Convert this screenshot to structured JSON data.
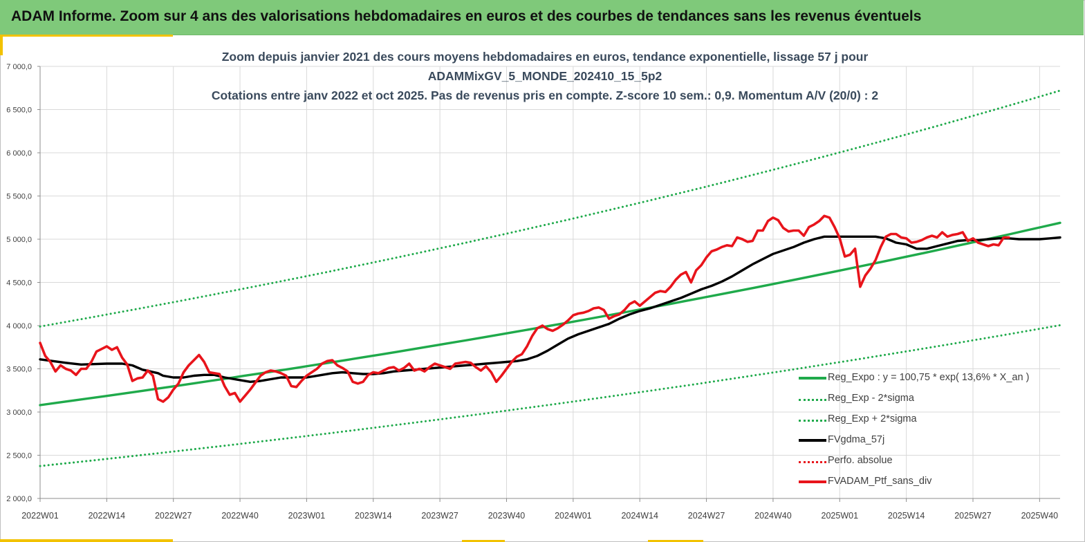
{
  "header": {
    "title": "ADAM Informe. Zoom sur 4 ans des valorisations hebdomadaires en euros et des courbes de tendances sans les revenus éventuels"
  },
  "colors": {
    "header_bg": "#7fc97a",
    "accent": "#f2c200",
    "reg_expo": "#1faa4b",
    "gdma": "#000000",
    "ptf": "#e8141b"
  },
  "chart_data": {
    "type": "line",
    "title_lines": [
      "Zoom depuis janvier 2021 des cours moyens hebdomadaires en euros, tendance exponentielle, lissage 57 j pour",
      "ADAMMixGV_5_MONDE_202410_15_5p2",
      "Cotations entre janv 2022 et oct 2025. Pas de revenus pris en compte. Z-score 10 sem.: 0,9. Momentum A/V (20/0) : 2"
    ],
    "x_unit": "week index from 2022W01",
    "x_range": [
      0,
      199
    ],
    "ylim": [
      2000,
      7000
    ],
    "y_ticks": [
      "2 000,0",
      "2 500,0",
      "3 000,0",
      "3 500,0",
      "4 000,0",
      "4 500,0",
      "5 000,0",
      "5 500,0",
      "6 000,0",
      "6 500,0",
      "7 000,0"
    ],
    "y_tick_values": [
      2000,
      2500,
      3000,
      3500,
      4000,
      4500,
      5000,
      5500,
      6000,
      6500,
      7000
    ],
    "x_ticks": [
      "2022W01",
      "2022W14",
      "2022W27",
      "2022W40",
      "2023W01",
      "2023W14",
      "2023W27",
      "2023W40",
      "2024W01",
      "2024W14",
      "2024W27",
      "2024W40",
      "2025W01",
      "2025W14",
      "2025W27",
      "2025W40"
    ],
    "x_tick_positions": [
      0,
      13,
      26,
      39,
      52,
      65,
      78,
      91,
      104,
      117,
      130,
      143,
      156,
      169,
      182,
      195
    ],
    "grid": true,
    "legend_position": "bottom-right",
    "series": [
      {
        "name": "Reg_Expo : y = 100,75 * exp( 13,6% *  X_an )",
        "style": "solid",
        "color": "#1faa4b",
        "x": [
          0,
          199
        ],
        "exp_fit": {
          "start": 3080,
          "end": 5190
        }
      },
      {
        "name": "Reg_Exp - 2*sigma",
        "style": "dotted",
        "color": "#1faa4b",
        "x": [
          0,
          199
        ],
        "exp_fit": {
          "start": 2375,
          "end": 4005
        }
      },
      {
        "name": "Reg_Exp + 2*sigma",
        "style": "dotted",
        "color": "#1faa4b",
        "x": [
          0,
          199
        ],
        "exp_fit": {
          "start": 3990,
          "end": 6720
        }
      },
      {
        "name": "FVgdma_57j",
        "style": "solid",
        "color": "#000000",
        "points": [
          [
            0,
            3610
          ],
          [
            5,
            3570
          ],
          [
            8,
            3550
          ],
          [
            13,
            3560
          ],
          [
            16,
            3560
          ],
          [
            18,
            3540
          ],
          [
            20,
            3490
          ],
          [
            23,
            3450
          ],
          [
            24,
            3420
          ],
          [
            26,
            3400
          ],
          [
            28,
            3400
          ],
          [
            30,
            3420
          ],
          [
            32,
            3430
          ],
          [
            34,
            3430
          ],
          [
            36,
            3400
          ],
          [
            39,
            3370
          ],
          [
            41,
            3350
          ],
          [
            43,
            3360
          ],
          [
            45,
            3380
          ],
          [
            47,
            3400
          ],
          [
            49,
            3400
          ],
          [
            52,
            3400
          ],
          [
            55,
            3430
          ],
          [
            57,
            3450
          ],
          [
            59,
            3460
          ],
          [
            61,
            3450
          ],
          [
            63,
            3440
          ],
          [
            65,
            3440
          ],
          [
            67,
            3450
          ],
          [
            69,
            3470
          ],
          [
            71,
            3480
          ],
          [
            73,
            3490
          ],
          [
            75,
            3500
          ],
          [
            77,
            3510
          ],
          [
            79,
            3520
          ],
          [
            81,
            3530
          ],
          [
            83,
            3540
          ],
          [
            85,
            3550
          ],
          [
            87,
            3560
          ],
          [
            89,
            3570
          ],
          [
            91,
            3580
          ],
          [
            93,
            3590
          ],
          [
            95,
            3610
          ],
          [
            97,
            3650
          ],
          [
            99,
            3710
          ],
          [
            101,
            3780
          ],
          [
            103,
            3850
          ],
          [
            105,
            3900
          ],
          [
            107,
            3940
          ],
          [
            109,
            3980
          ],
          [
            111,
            4020
          ],
          [
            113,
            4080
          ],
          [
            115,
            4130
          ],
          [
            117,
            4170
          ],
          [
            119,
            4200
          ],
          [
            121,
            4240
          ],
          [
            123,
            4280
          ],
          [
            125,
            4320
          ],
          [
            127,
            4370
          ],
          [
            129,
            4420
          ],
          [
            131,
            4460
          ],
          [
            133,
            4510
          ],
          [
            135,
            4570
          ],
          [
            137,
            4640
          ],
          [
            139,
            4710
          ],
          [
            141,
            4770
          ],
          [
            143,
            4830
          ],
          [
            145,
            4870
          ],
          [
            147,
            4910
          ],
          [
            149,
            4960
          ],
          [
            151,
            5000
          ],
          [
            153,
            5030
          ],
          [
            155,
            5030
          ],
          [
            157,
            5030
          ],
          [
            159,
            5030
          ],
          [
            161,
            5030
          ],
          [
            163,
            5030
          ],
          [
            165,
            5010
          ],
          [
            167,
            4960
          ],
          [
            169,
            4940
          ],
          [
            171,
            4890
          ],
          [
            173,
            4890
          ],
          [
            175,
            4920
          ],
          [
            177,
            4950
          ],
          [
            179,
            4980
          ],
          [
            181,
            4990
          ],
          [
            183,
            4990
          ],
          [
            185,
            5000
          ],
          [
            187,
            5010
          ],
          [
            189,
            5010
          ],
          [
            191,
            5000
          ],
          [
            193,
            5000
          ],
          [
            195,
            5000
          ],
          [
            197,
            5010
          ],
          [
            199,
            5020
          ]
        ]
      },
      {
        "name": "Perfo. absolue",
        "style": "dotted",
        "color": "#e8141b",
        "points": []
      },
      {
        "name": "FVADAM_Ptf_sans_div",
        "style": "solid",
        "color": "#e8141b",
        "points": [
          [
            0,
            3800
          ],
          [
            1,
            3650
          ],
          [
            2,
            3580
          ],
          [
            3,
            3470
          ],
          [
            4,
            3540
          ],
          [
            5,
            3500
          ],
          [
            6,
            3480
          ],
          [
            7,
            3430
          ],
          [
            8,
            3500
          ],
          [
            9,
            3500
          ],
          [
            10,
            3580
          ],
          [
            11,
            3700
          ],
          [
            12,
            3730
          ],
          [
            13,
            3760
          ],
          [
            14,
            3720
          ],
          [
            15,
            3750
          ],
          [
            16,
            3630
          ],
          [
            17,
            3550
          ],
          [
            18,
            3360
          ],
          [
            19,
            3390
          ],
          [
            20,
            3400
          ],
          [
            21,
            3480
          ],
          [
            22,
            3420
          ],
          [
            23,
            3150
          ],
          [
            24,
            3120
          ],
          [
            25,
            3170
          ],
          [
            26,
            3260
          ],
          [
            27,
            3330
          ],
          [
            28,
            3460
          ],
          [
            29,
            3540
          ],
          [
            30,
            3600
          ],
          [
            31,
            3660
          ],
          [
            32,
            3580
          ],
          [
            33,
            3460
          ],
          [
            34,
            3450
          ],
          [
            35,
            3440
          ],
          [
            36,
            3300
          ],
          [
            37,
            3200
          ],
          [
            38,
            3220
          ],
          [
            39,
            3120
          ],
          [
            40,
            3190
          ],
          [
            41,
            3260
          ],
          [
            42,
            3340
          ],
          [
            43,
            3420
          ],
          [
            44,
            3460
          ],
          [
            45,
            3480
          ],
          [
            46,
            3470
          ],
          [
            47,
            3450
          ],
          [
            48,
            3420
          ],
          [
            49,
            3300
          ],
          [
            50,
            3290
          ],
          [
            51,
            3360
          ],
          [
            52,
            3420
          ],
          [
            53,
            3460
          ],
          [
            54,
            3500
          ],
          [
            55,
            3560
          ],
          [
            56,
            3590
          ],
          [
            57,
            3600
          ],
          [
            58,
            3540
          ],
          [
            59,
            3510
          ],
          [
            60,
            3470
          ],
          [
            61,
            3350
          ],
          [
            62,
            3330
          ],
          [
            63,
            3350
          ],
          [
            64,
            3430
          ],
          [
            65,
            3460
          ],
          [
            66,
            3450
          ],
          [
            67,
            3480
          ],
          [
            68,
            3510
          ],
          [
            69,
            3520
          ],
          [
            70,
            3480
          ],
          [
            71,
            3510
          ],
          [
            72,
            3560
          ],
          [
            73,
            3480
          ],
          [
            74,
            3500
          ],
          [
            75,
            3470
          ],
          [
            76,
            3520
          ],
          [
            77,
            3560
          ],
          [
            78,
            3540
          ],
          [
            79,
            3520
          ],
          [
            80,
            3500
          ],
          [
            81,
            3560
          ],
          [
            82,
            3570
          ],
          [
            83,
            3580
          ],
          [
            84,
            3570
          ],
          [
            85,
            3520
          ],
          [
            86,
            3480
          ],
          [
            87,
            3530
          ],
          [
            88,
            3460
          ],
          [
            89,
            3350
          ],
          [
            90,
            3420
          ],
          [
            91,
            3500
          ],
          [
            92,
            3580
          ],
          [
            93,
            3640
          ],
          [
            94,
            3670
          ],
          [
            95,
            3760
          ],
          [
            96,
            3880
          ],
          [
            97,
            3970
          ],
          [
            98,
            4000
          ],
          [
            99,
            3960
          ],
          [
            100,
            3940
          ],
          [
            101,
            3970
          ],
          [
            102,
            4010
          ],
          [
            103,
            4060
          ],
          [
            104,
            4120
          ],
          [
            105,
            4140
          ],
          [
            106,
            4150
          ],
          [
            107,
            4170
          ],
          [
            108,
            4200
          ],
          [
            109,
            4210
          ],
          [
            110,
            4180
          ],
          [
            111,
            4080
          ],
          [
            112,
            4110
          ],
          [
            113,
            4130
          ],
          [
            114,
            4180
          ],
          [
            115,
            4250
          ],
          [
            116,
            4280
          ],
          [
            117,
            4230
          ],
          [
            118,
            4280
          ],
          [
            119,
            4330
          ],
          [
            120,
            4380
          ],
          [
            121,
            4400
          ],
          [
            122,
            4390
          ],
          [
            123,
            4450
          ],
          [
            124,
            4530
          ],
          [
            125,
            4590
          ],
          [
            126,
            4620
          ],
          [
            127,
            4500
          ],
          [
            128,
            4640
          ],
          [
            129,
            4700
          ],
          [
            130,
            4790
          ],
          [
            131,
            4860
          ],
          [
            132,
            4880
          ],
          [
            133,
            4910
          ],
          [
            134,
            4930
          ],
          [
            135,
            4920
          ],
          [
            136,
            5020
          ],
          [
            137,
            5000
          ],
          [
            138,
            4970
          ],
          [
            139,
            4980
          ],
          [
            140,
            5100
          ],
          [
            141,
            5100
          ],
          [
            142,
            5210
          ],
          [
            143,
            5250
          ],
          [
            144,
            5220
          ],
          [
            145,
            5130
          ],
          [
            146,
            5090
          ],
          [
            147,
            5100
          ],
          [
            148,
            5100
          ],
          [
            149,
            5040
          ],
          [
            150,
            5140
          ],
          [
            151,
            5170
          ],
          [
            152,
            5210
          ],
          [
            153,
            5270
          ],
          [
            154,
            5250
          ],
          [
            155,
            5140
          ],
          [
            156,
            5010
          ],
          [
            157,
            4800
          ],
          [
            158,
            4820
          ],
          [
            159,
            4890
          ],
          [
            160,
            4450
          ],
          [
            161,
            4580
          ],
          [
            162,
            4660
          ],
          [
            163,
            4760
          ],
          [
            164,
            4910
          ],
          [
            165,
            5030
          ],
          [
            166,
            5060
          ],
          [
            167,
            5060
          ],
          [
            168,
            5020
          ],
          [
            169,
            5010
          ],
          [
            170,
            4960
          ],
          [
            171,
            4970
          ],
          [
            172,
            4990
          ],
          [
            173,
            5020
          ],
          [
            174,
            5040
          ],
          [
            175,
            5020
          ],
          [
            176,
            5080
          ],
          [
            177,
            5030
          ],
          [
            178,
            5050
          ],
          [
            179,
            5060
          ],
          [
            180,
            5080
          ],
          [
            181,
            4980
          ],
          [
            182,
            5010
          ],
          [
            183,
            4960
          ],
          [
            184,
            4940
          ],
          [
            185,
            4920
          ],
          [
            186,
            4940
          ],
          [
            187,
            4930
          ],
          [
            188,
            5020
          ],
          [
            189,
            5020
          ]
        ]
      }
    ]
  }
}
